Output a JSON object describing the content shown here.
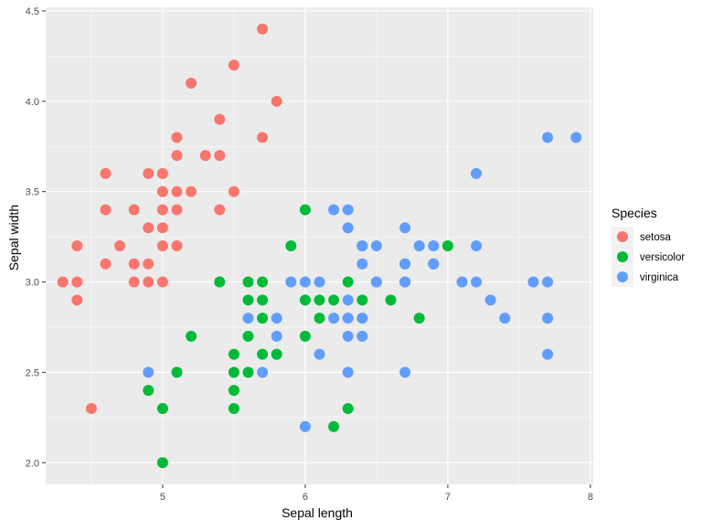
{
  "chart_data": {
    "type": "scatter",
    "title": "",
    "xlabel": "Sepal length",
    "ylabel": "Sepal width",
    "xlim": [
      4.18,
      8.02
    ],
    "ylim": [
      1.88,
      4.52
    ],
    "x_ticks": [
      5,
      6,
      7,
      8
    ],
    "x_tick_labels": [
      "5",
      "6",
      "7",
      "8"
    ],
    "y_ticks": [
      2.0,
      2.5,
      3.0,
      3.5,
      4.0,
      4.5
    ],
    "y_tick_labels": [
      "2.0",
      "2.5",
      "3.0",
      "3.5",
      "4.0",
      "4.5"
    ],
    "grid": true,
    "legend": {
      "title": "Species",
      "placement": "right"
    },
    "series": [
      {
        "name": "setosa",
        "color": "#F8766D",
        "x": [
          5.7,
          5.5,
          5.2,
          5.8,
          5.4,
          5.1,
          5.7,
          5.1,
          5.3,
          5.4,
          4.6,
          4.9,
          5.0,
          5.5,
          5.0,
          5.1,
          5.2,
          5.0,
          5.1,
          4.6,
          4.8,
          5.4,
          4.9,
          5.0,
          5.0,
          5.1,
          4.4,
          4.6,
          4.7,
          4.8,
          4.9,
          4.3,
          4.4,
          4.8,
          4.9,
          5.0,
          4.4,
          4.5
        ],
        "y": [
          4.4,
          4.2,
          4.1,
          4.0,
          3.9,
          3.8,
          3.8,
          3.7,
          3.7,
          3.7,
          3.6,
          3.6,
          3.6,
          3.5,
          3.5,
          3.5,
          3.5,
          3.4,
          3.4,
          3.4,
          3.4,
          3.4,
          3.3,
          3.3,
          3.2,
          3.2,
          3.2,
          3.1,
          3.2,
          3.1,
          3.1,
          3.0,
          3.0,
          3.0,
          3.0,
          3.0,
          2.9,
          2.3
        ]
      },
      {
        "name": "versicolor",
        "color": "#00BA38",
        "x": [
          6.0,
          5.9,
          7.0,
          6.4,
          6.9,
          6.7,
          6.3,
          6.1,
          6.2,
          6.4,
          6.6,
          5.4,
          5.6,
          5.7,
          6.0,
          6.1,
          5.6,
          5.7,
          6.7,
          6.8,
          5.6,
          5.7,
          5.8,
          6.0,
          5.2,
          5.5,
          5.7,
          5.5,
          5.6,
          5.1,
          4.9,
          5.5,
          6.2,
          5.5,
          6.3,
          5.0,
          5.0
        ],
        "y": [
          3.4,
          3.2,
          3.2,
          3.2,
          3.1,
          3.1,
          3.0,
          2.9,
          2.9,
          2.9,
          2.9,
          3.0,
          3.0,
          3.0,
          2.9,
          2.8,
          2.9,
          2.9,
          3.0,
          2.8,
          2.7,
          2.6,
          2.6,
          2.7,
          2.7,
          2.6,
          2.8,
          2.5,
          2.5,
          2.5,
          2.4,
          2.4,
          2.2,
          2.3,
          2.3,
          2.3,
          2.0
        ]
      },
      {
        "name": "virginica",
        "color": "#619CFF",
        "x": [
          7.7,
          7.9,
          7.2,
          6.2,
          6.3,
          6.3,
          6.7,
          6.4,
          6.5,
          6.8,
          6.9,
          7.2,
          6.7,
          6.4,
          6.9,
          6.5,
          5.9,
          6.0,
          6.1,
          7.1,
          7.2,
          7.6,
          7.7,
          6.3,
          6.5,
          6.7,
          7.3,
          5.6,
          5.8,
          6.2,
          6.3,
          6.4,
          7.4,
          7.7,
          5.8,
          6.3,
          6.4,
          6.1,
          7.7,
          4.9,
          5.7,
          6.3,
          6.7,
          6.0
        ],
        "y": [
          3.8,
          3.8,
          3.6,
          3.4,
          3.4,
          3.3,
          3.3,
          3.2,
          3.2,
          3.2,
          3.2,
          3.2,
          3.1,
          3.1,
          3.1,
          3.0,
          3.0,
          3.0,
          3.0,
          3.0,
          3.0,
          3.0,
          3.0,
          2.9,
          3.0,
          3.0,
          2.9,
          2.8,
          2.8,
          2.8,
          2.8,
          2.8,
          2.8,
          2.8,
          2.7,
          2.7,
          2.7,
          2.6,
          2.6,
          2.5,
          2.5,
          2.5,
          2.5,
          2.2
        ]
      }
    ]
  },
  "colors": {
    "panel_background": "#EBEBEB",
    "grid_major": "#FFFFFF",
    "legend_key_background": "#F2F2F2"
  }
}
